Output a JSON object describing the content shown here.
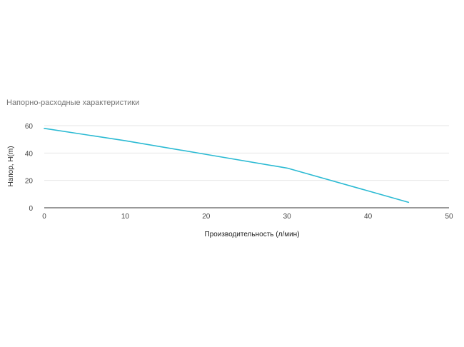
{
  "chart_data": {
    "type": "line",
    "title": "Напорно-расходные характеристики",
    "xlabel": "Производительность (л/мин)",
    "ylabel": "Напор, H(m)",
    "xlim": [
      0,
      50
    ],
    "ylim": [
      0,
      60
    ],
    "xticks": [
      0,
      10,
      20,
      30,
      40,
      50
    ],
    "yticks": [
      0,
      20,
      40,
      60
    ],
    "grid": "horizontal",
    "legend": "none",
    "series": [
      {
        "color": "#2bbad3",
        "x": [
          0,
          10,
          20,
          30,
          45
        ],
        "y": [
          58,
          49,
          39,
          29,
          4
        ]
      }
    ]
  }
}
